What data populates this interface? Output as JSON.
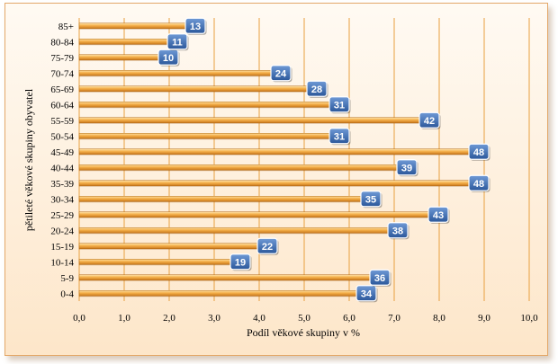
{
  "chart_data": {
    "type": "bar",
    "orientation": "horizontal",
    "categories": [
      "0-4",
      "5-9",
      "10-14",
      "15-19",
      "20-24",
      "25-29",
      "30-34",
      "35-39",
      "40-44",
      "45-49",
      "50-54",
      "55-59",
      "60-64",
      "65-69",
      "70-74",
      "75-79",
      "80-84",
      "85+"
    ],
    "values": [
      6.2,
      6.5,
      3.4,
      4.0,
      6.9,
      7.8,
      6.3,
      8.7,
      7.1,
      8.7,
      5.6,
      7.6,
      5.6,
      5.1,
      4.3,
      1.8,
      2.0,
      2.4
    ],
    "data_labels": [
      "34",
      "36",
      "19",
      "22",
      "38",
      "43",
      "35",
      "48",
      "39",
      "48",
      "31",
      "42",
      "31",
      "28",
      "24",
      "10",
      "11",
      "13"
    ],
    "x_ticks": [
      "0,0",
      "1,0",
      "2,0",
      "3,0",
      "4,0",
      "5,0",
      "6,0",
      "7,0",
      "8,0",
      "9,0",
      "10,0"
    ],
    "xlim": [
      0,
      10
    ],
    "xlabel": "Podíl věkové skupiny v  %",
    "ylabel": "pětileté věkové skupiny obyvatel",
    "grid": "vertical",
    "colors": {
      "bar": "#f0a030",
      "bar_light": "#fcd48a",
      "label_box": "#3f6fb0",
      "grid": "#e8a040"
    }
  }
}
